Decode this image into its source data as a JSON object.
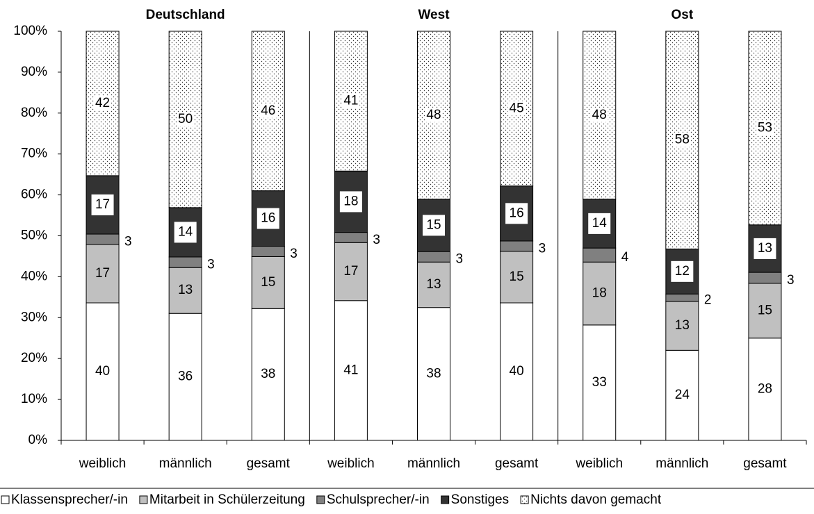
{
  "chart_data": {
    "type": "bar",
    "stacking": "percent",
    "groups": [
      "Deutschland",
      "West",
      "Ost"
    ],
    "categories": [
      "weiblich",
      "männlich",
      "gesamt",
      "weiblich",
      "männlich",
      "gesamt",
      "weiblich",
      "männlich",
      "gesamt"
    ],
    "series": [
      {
        "name": "Klassensprecher/-in",
        "color": "#ffffff",
        "values": [
          40,
          36,
          38,
          41,
          38,
          40,
          33,
          24,
          28
        ]
      },
      {
        "name": "Mitarbeit in Schülerzeitung",
        "color": "#c0c0c0",
        "values": [
          17,
          13,
          15,
          17,
          13,
          15,
          18,
          13,
          15
        ]
      },
      {
        "name": "Schulsprecher/-in",
        "color": "#808080",
        "values": [
          3,
          3,
          3,
          3,
          3,
          3,
          4,
          2,
          3
        ]
      },
      {
        "name": "Sonstiges",
        "color": "#333333",
        "values": [
          17,
          14,
          16,
          18,
          15,
          16,
          14,
          12,
          13
        ]
      },
      {
        "name": "Nichts davon gemacht",
        "color": "dotted",
        "values": [
          42,
          50,
          46,
          41,
          48,
          45,
          48,
          58,
          53
        ]
      }
    ],
    "ylim": [
      0,
      100
    ],
    "yticks": [
      {
        "value": 0,
        "label": "0%"
      },
      {
        "value": 10,
        "label": "10%"
      },
      {
        "value": 20,
        "label": "20%"
      },
      {
        "value": 30,
        "label": "30%"
      },
      {
        "value": 40,
        "label": "40%"
      },
      {
        "value": 50,
        "label": "50%"
      },
      {
        "value": 60,
        "label": "60%"
      },
      {
        "value": 70,
        "label": "70%"
      },
      {
        "value": 80,
        "label": "80%"
      },
      {
        "value": 90,
        "label": "90%"
      },
      {
        "value": 100,
        "label": "100%"
      }
    ],
    "legend": "bottom"
  }
}
